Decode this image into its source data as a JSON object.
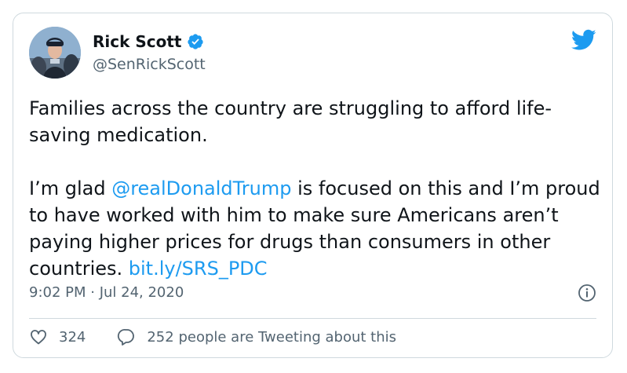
{
  "author": {
    "name": "Rick Scott",
    "handle": "@SenRickScott",
    "verified": true
  },
  "tweet": {
    "p1": "Families across the country are struggling to afford life-saving medication.",
    "p2_before_mention": "I’m glad ",
    "mention": "@realDonaldTrump",
    "p2_after_mention": " is focused on this and I’m proud to have worked with him to make sure Americans aren’t paying higher prices for drugs than consumers in other countries. ",
    "link": "bit.ly/SRS_PDC"
  },
  "meta": {
    "timestamp": "9:02 PM · Jul 24, 2020"
  },
  "actions": {
    "likes": "324",
    "conversation": "252 people are Tweeting about this"
  },
  "icons": {
    "platform": "twitter-bird-icon",
    "verified": "verified-badge-icon",
    "info": "info-icon",
    "like": "heart-icon",
    "reply": "speech-bubble-icon"
  },
  "colors": {
    "accent": "#1d9bf0",
    "text": "#0f1419",
    "secondary": "#536471",
    "border": "#cfd9de"
  }
}
